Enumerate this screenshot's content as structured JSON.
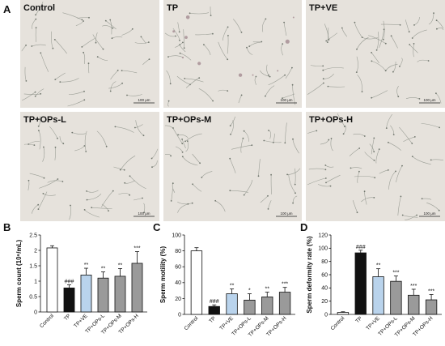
{
  "panel_letters": [
    "A",
    "B",
    "C",
    "D"
  ],
  "micrographs": [
    {
      "label": "Control",
      "scale_bar": "100 μm"
    },
    {
      "label": "TP",
      "scale_bar": "100 μm"
    },
    {
      "label": "TP+VE",
      "scale_bar": "100 μm"
    },
    {
      "label": "TP+OPs-L",
      "scale_bar": "100 μm"
    },
    {
      "label": "TP+OPs-M",
      "scale_bar": "100 μm"
    },
    {
      "label": "TP+OPs-H",
      "scale_bar": "100 μm"
    }
  ],
  "colors": {
    "control": "#ffffff",
    "tp": "#111111",
    "tp_ve": "#b9d3ec",
    "ops": "#9a9a9a",
    "micrograph_bg": "#e6e2dc"
  },
  "chart_data": [
    {
      "type": "bar",
      "panel": "B",
      "categories": [
        "Control",
        "TP",
        "TP+VE",
        "TP+OPs-L",
        "TP+OPs-M",
        "TP+OPs-H"
      ],
      "values": [
        2.08,
        0.78,
        1.2,
        1.1,
        1.16,
        1.58
      ],
      "errors": [
        0.07,
        0.1,
        0.22,
        0.2,
        0.25,
        0.38
      ],
      "significance": [
        "",
        "###",
        "**",
        "**",
        "**",
        "***"
      ],
      "ylabel": "Sperm count (10⁶/mL)",
      "ylim": [
        0,
        2.5
      ],
      "yticks": [
        "0",
        "0.5",
        "1",
        "1.5",
        "2",
        "2.5"
      ],
      "ytick_values": [
        0,
        0.5,
        1,
        1.5,
        2,
        2.5
      ]
    },
    {
      "type": "bar",
      "panel": "C",
      "categories": [
        "Control",
        "TP",
        "TP+VE",
        "TP+OPs-L",
        "TP+OPs-M",
        "TP+OPs-H"
      ],
      "values": [
        80,
        10,
        26,
        18,
        22,
        28
      ],
      "errors": [
        4,
        2,
        6,
        8,
        6,
        6
      ],
      "significance": [
        "",
        "###",
        "**",
        "*",
        "**",
        "***"
      ],
      "ylabel": "Sperm motility (%)",
      "ylim": [
        0,
        100
      ],
      "yticks": [
        "0",
        "20",
        "40",
        "60",
        "80",
        "100"
      ],
      "ytick_values": [
        0,
        20,
        40,
        60,
        80,
        100
      ]
    },
    {
      "type": "bar",
      "panel": "D",
      "categories": [
        "Control",
        "TP",
        "TP+VE",
        "TP+OPs-L",
        "TP+OPs-M",
        "TP+OPs-H"
      ],
      "values": [
        3,
        93,
        57,
        50,
        29,
        22
      ],
      "errors": [
        1,
        4,
        12,
        8,
        9,
        8
      ],
      "significance": [
        "",
        "###",
        "**",
        "***",
        "***",
        "***"
      ],
      "ylabel": "Sperm deformity rate (%)",
      "ylim": [
        0,
        120
      ],
      "yticks": [
        "0",
        "20",
        "40",
        "60",
        "80",
        "100",
        "120"
      ],
      "ytick_values": [
        0,
        20,
        40,
        60,
        80,
        100,
        120
      ]
    }
  ]
}
